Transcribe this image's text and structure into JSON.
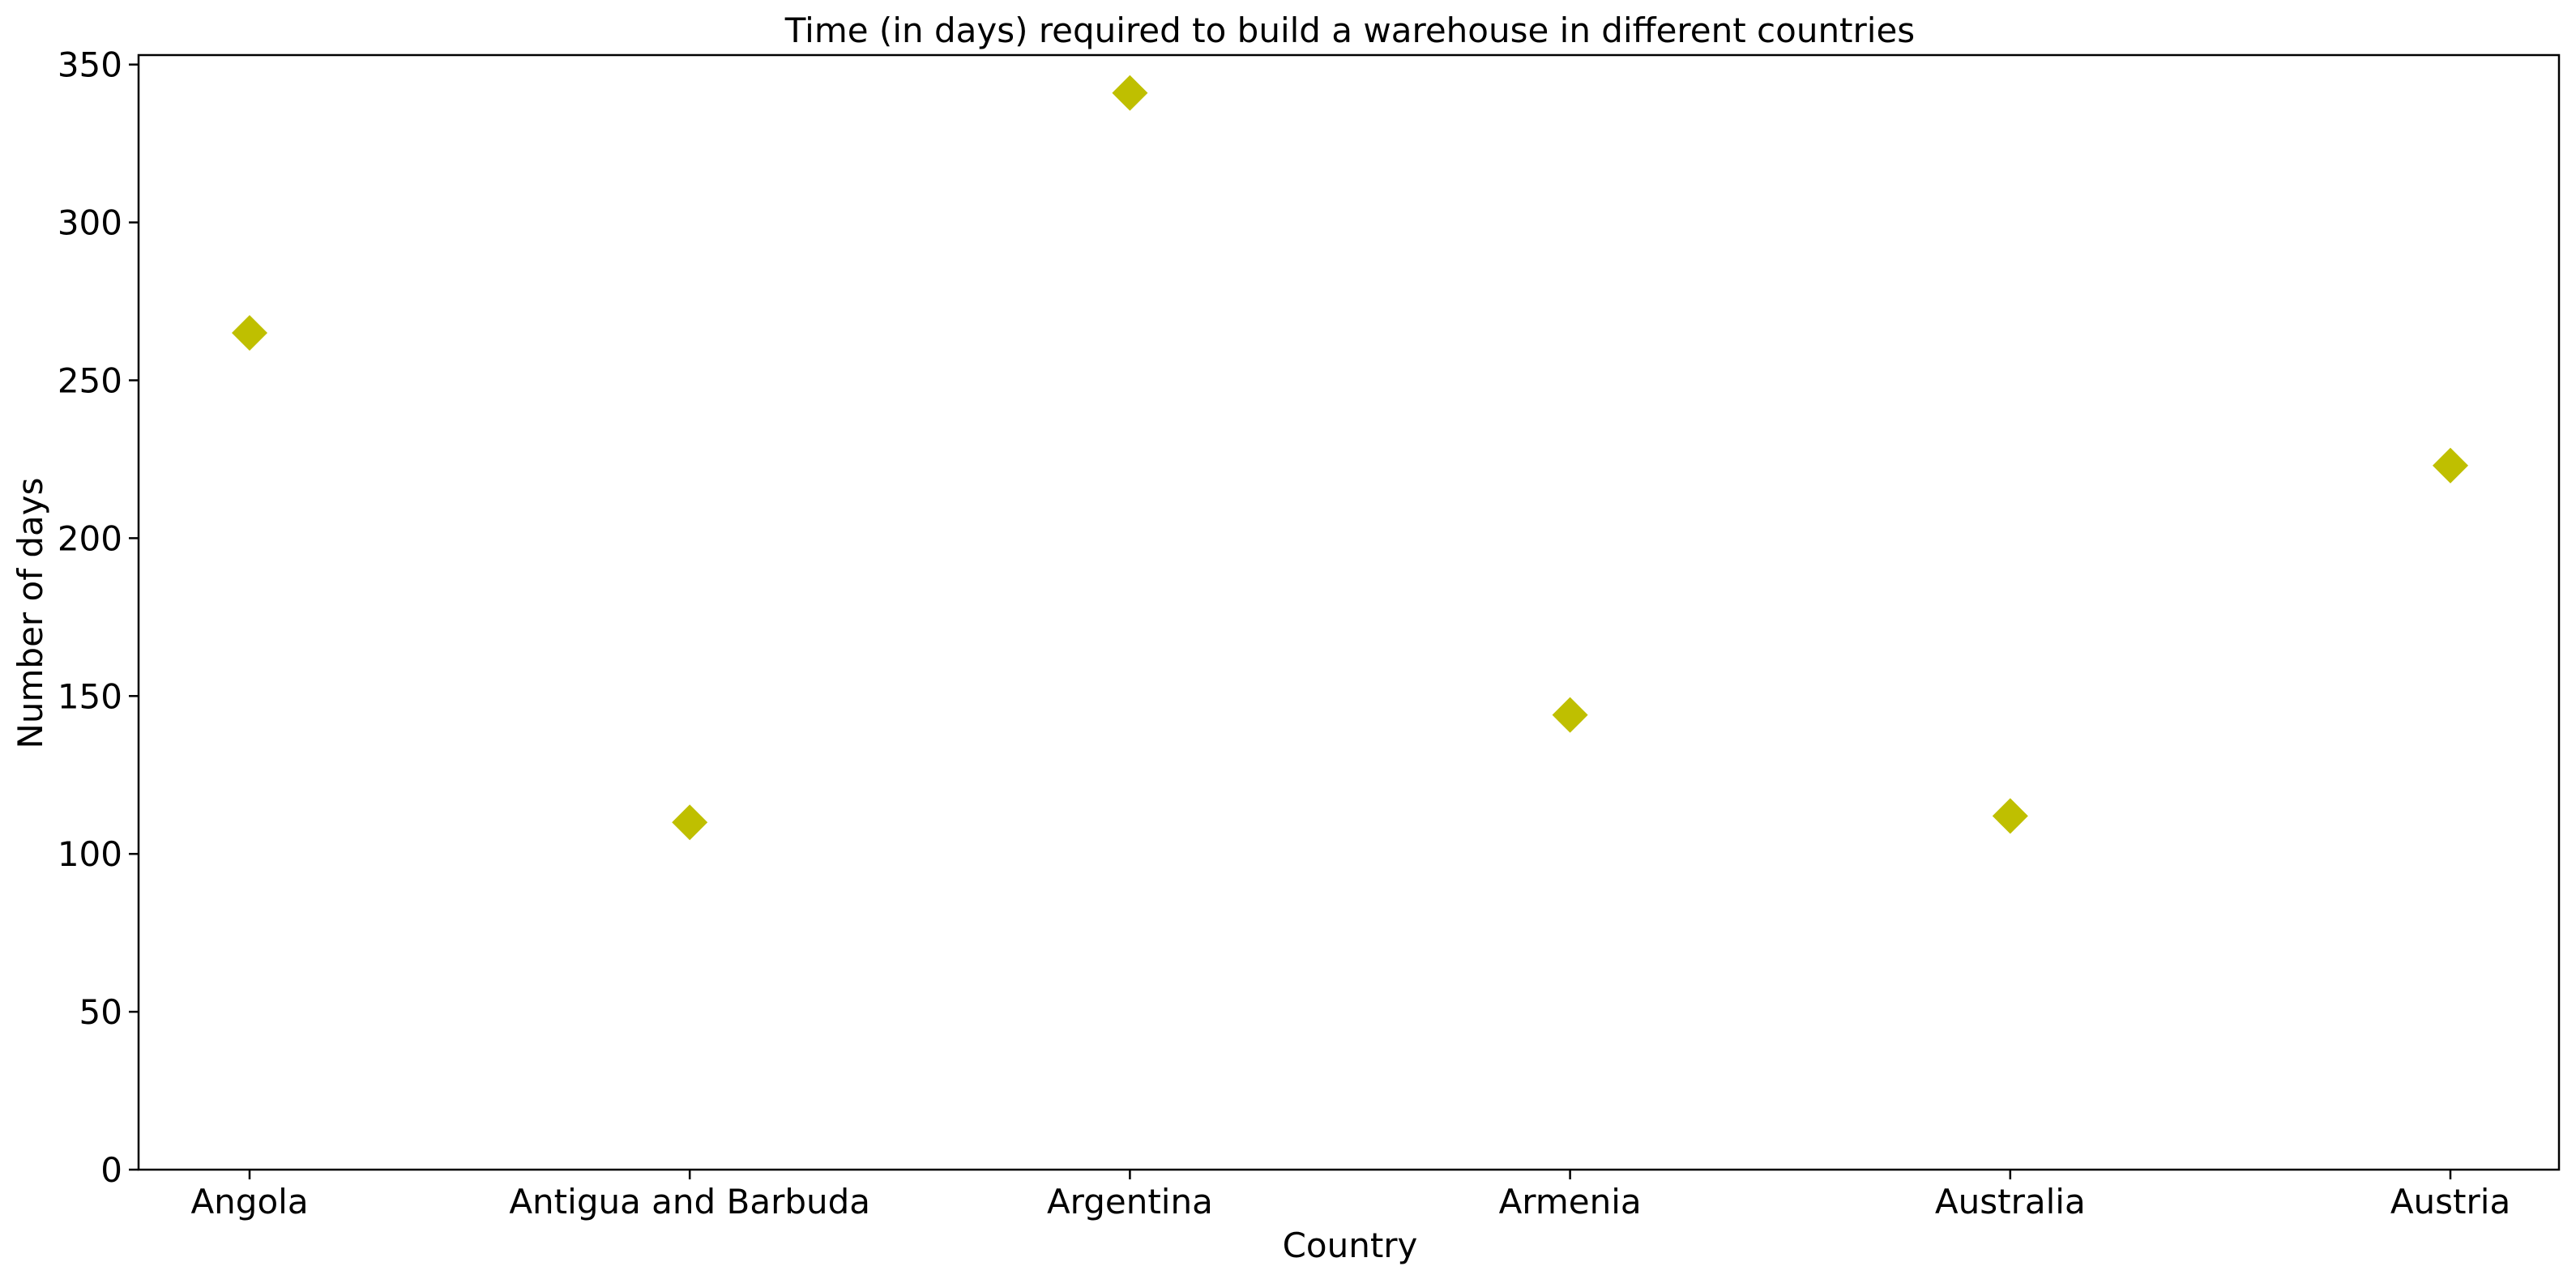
{
  "chart_data": {
    "type": "scatter",
    "title": "Time (in days) required to build a warehouse in different countries",
    "xlabel": "Country",
    "ylabel": "Number of days",
    "categories": [
      "Angola",
      "Antigua and Barbuda",
      "Argentina",
      "Armenia",
      "Australia",
      "Austria"
    ],
    "values": [
      265,
      110,
      341,
      144,
      112,
      223
    ],
    "ylim": [
      0,
      353
    ],
    "yticks": [
      0,
      50,
      100,
      150,
      200,
      250,
      300,
      350
    ],
    "marker": "diamond",
    "marker_color": "#bfbf00",
    "grid": false,
    "legend": "none"
  }
}
